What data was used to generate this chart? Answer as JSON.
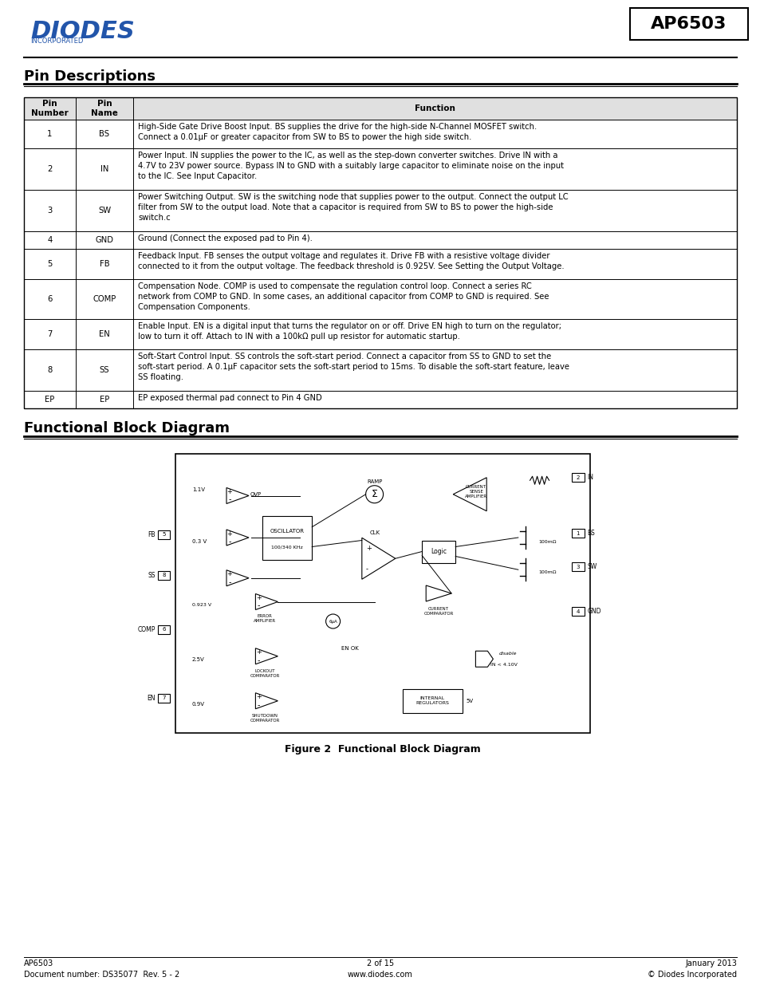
{
  "title": "AP6503",
  "logo_text": "DIODES",
  "logo_sub": "INCORPORATED",
  "section1_title": "Pin Descriptions",
  "section2_title": "Functional Block Diagram",
  "figure_caption": "Figure 2  Functional Block Diagram",
  "table_headers": [
    "Pin\nNumber",
    "Pin\nName",
    "Function"
  ],
  "table_rows": [
    [
      "1",
      "BS",
      "High-Side Gate Drive Boost Input. BS supplies the drive for the high-side N-Channel MOSFET switch.\nConnect a 0.01μF or greater capacitor from SW to BS to power the high side switch."
    ],
    [
      "2",
      "IN",
      "Power Input. IN supplies the power to the IC, as well as the step-down converter switches. Drive IN with a\n4.7V to 23V power source. Bypass IN to GND with a suitably large capacitor to eliminate noise on the input\nto the IC. See Input Capacitor."
    ],
    [
      "3",
      "SW",
      "Power Switching Output. SW is the switching node that supplies power to the output. Connect the output LC\nfilter from SW to the output load. Note that a capacitor is required from SW to BS to power the high-side\nswitch.c"
    ],
    [
      "4",
      "GND",
      "Ground (Connect the exposed pad to Pin 4)."
    ],
    [
      "5",
      "FB",
      "Feedback Input. FB senses the output voltage and regulates it. Drive FB with a resistive voltage divider\nconnected to it from the output voltage. The feedback threshold is 0.925V. See Setting the Output Voltage."
    ],
    [
      "6",
      "COMP",
      "Compensation Node. COMP is used to compensate the regulation control loop. Connect a series RC\nnetwork from COMP to GND. In some cases, an additional capacitor from COMP to GND is required. See\nCompensation Components."
    ],
    [
      "7",
      "EN",
      "Enable Input. EN is a digital input that turns the regulator on or off. Drive EN high to turn on the regulator;\nlow to turn it off. Attach to IN with a 100kΩ pull up resistor for automatic startup."
    ],
    [
      "8",
      "SS",
      "Soft-Start Control Input. SS controls the soft-start period. Connect a capacitor from SS to GND to set the\nsoft-start period. A 0.1μF capacitor sets the soft-start period to 15ms. To disable the soft-start feature, leave\nSS floating."
    ],
    [
      "EP",
      "EP",
      "EP exposed thermal pad connect to Pin 4 GND"
    ]
  ],
  "footer_left": "AP6503\nDocument number: DS35077  Rev. 5 - 2",
  "footer_center": "2 of 15\nwww.diodes.com",
  "footer_right": "January 2013\n© Diodes Incorporated",
  "bg_color": "#ffffff",
  "text_color": "#000000",
  "blue_color": "#2255aa",
  "border_color": "#000000"
}
